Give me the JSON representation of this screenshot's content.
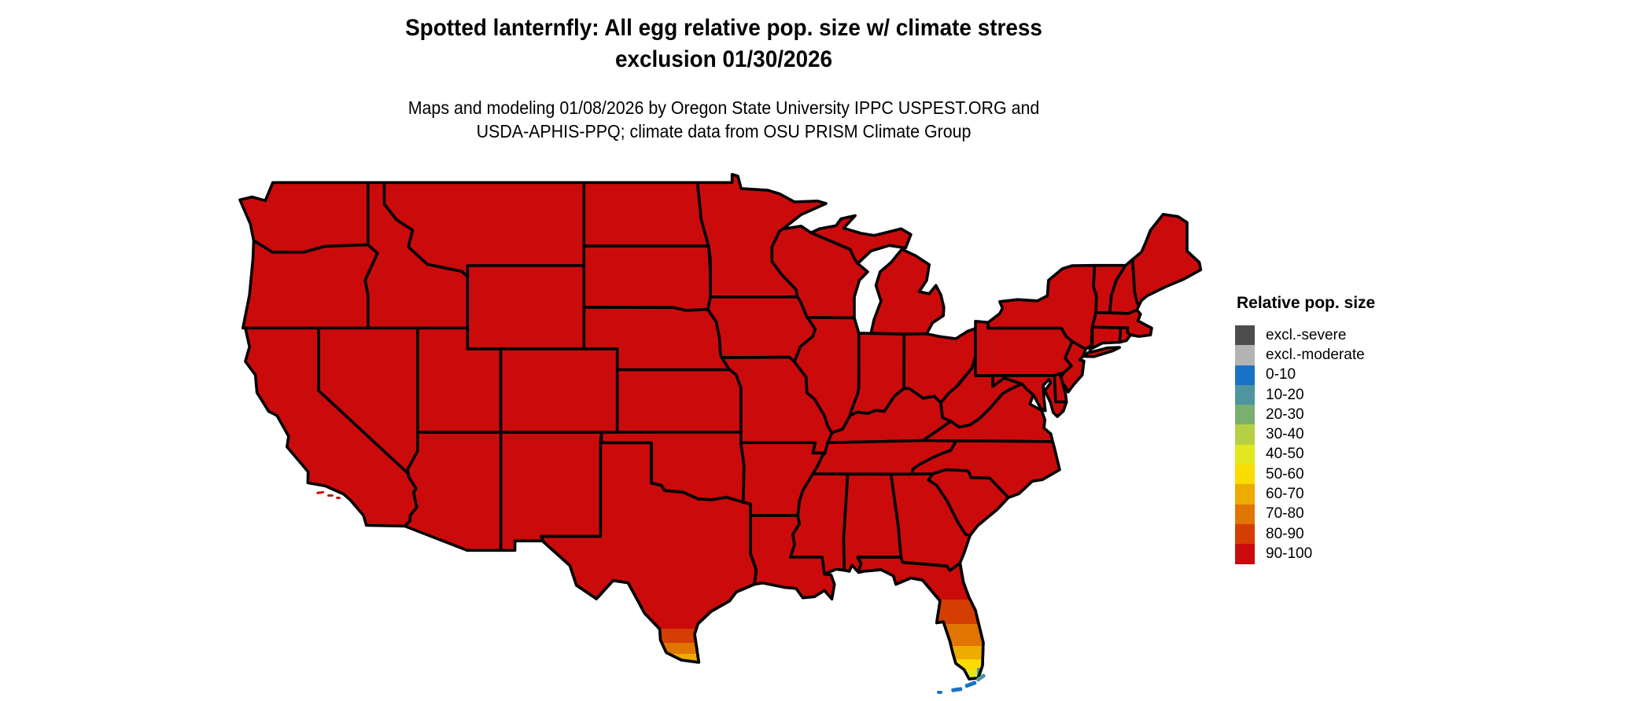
{
  "title": {
    "line1": "Spotted lanternfly: All egg relative pop. size w/ climate stress",
    "line2": "exclusion 01/30/2026"
  },
  "subtitle": {
    "line1": "Maps and modeling 01/08/2026 by Oregon State University IPPC USPEST.ORG and",
    "line2": "USDA-APHIS-PPQ; climate data from OSU PRISM Climate Group"
  },
  "legend": {
    "title": "Relative pop. size",
    "entries": [
      {
        "label": "excl.-severe",
        "color": "#4d4d4d"
      },
      {
        "label": "excl.-moderate",
        "color": "#b3b3b3"
      },
      {
        "label": "0-10",
        "color": "#1a72c8"
      },
      {
        "label": "10-20",
        "color": "#4e95a0"
      },
      {
        "label": "20-30",
        "color": "#7cae6e"
      },
      {
        "label": "30-40",
        "color": "#b5d044"
      },
      {
        "label": "40-50",
        "color": "#e2e81e"
      },
      {
        "label": "50-60",
        "color": "#fadc00"
      },
      {
        "label": "60-70",
        "color": "#eeab00"
      },
      {
        "label": "70-80",
        "color": "#e07502"
      },
      {
        "label": "80-90",
        "color": "#d53e02"
      },
      {
        "label": "90-100",
        "color": "#cb0b0b"
      }
    ]
  },
  "map": {
    "region": "Contiguous United States",
    "state_border_color": "#000000",
    "water_background_color": "#ffffff",
    "default_value": "90-100"
  },
  "chart_data": {
    "type": "choropleth",
    "title": "Spotted lanternfly: All egg relative pop. size w/ climate stress exclusion 01/30/2026",
    "unit": "Relative pop. size (0-100, plus climate-stress exclusion classes)",
    "legend_buckets": [
      "excl.-severe",
      "excl.-moderate",
      "0-10",
      "10-20",
      "20-30",
      "30-40",
      "40-50",
      "50-60",
      "60-70",
      "70-80",
      "80-90",
      "90-100"
    ],
    "legend_position": "right",
    "default_value": "90-100",
    "observations": [
      {
        "area": "Contiguous US (nearly all states)",
        "value": "90-100"
      },
      {
        "area": "Central Florida (Tampa/Orlando latitude)",
        "value": "80-90"
      },
      {
        "area": "South-central Florida",
        "value": "70-80"
      },
      {
        "area": "Lake Okeechobee latitude, Florida",
        "value": "60-70"
      },
      {
        "area": "Southern Florida",
        "value": "50-60"
      },
      {
        "area": "Far south Florida",
        "value": "40-50"
      },
      {
        "area": "Florida southern tip",
        "value": "30-40"
      },
      {
        "area": "Florida SE tip coast",
        "value": "10-20"
      },
      {
        "area": "Upper Florida Keys",
        "value": "10-20"
      },
      {
        "area": "Lower Florida Keys",
        "value": "0-10"
      },
      {
        "area": "South Texas (lower Rio Grande Valley)",
        "value": "80-90"
      },
      {
        "area": "Far south Texas",
        "value": "70-80"
      },
      {
        "area": "Texas southern tip (Brownsville)",
        "value": "60-70"
      }
    ]
  }
}
